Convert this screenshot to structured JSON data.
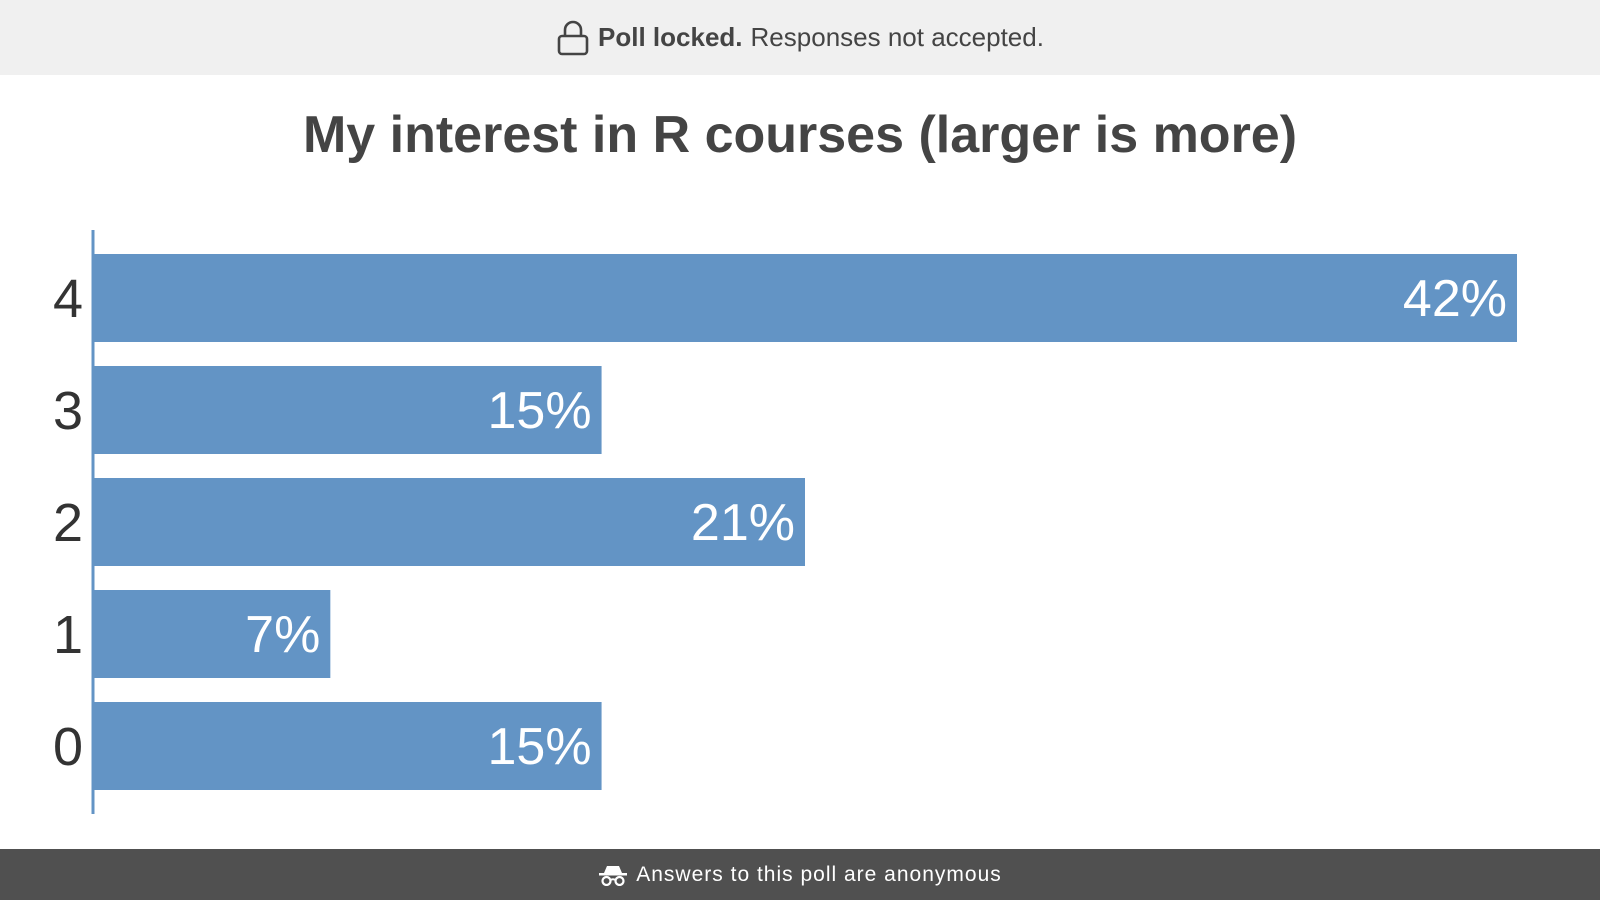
{
  "banner": {
    "icon": "lock-icon",
    "strong_text": "Poll locked.",
    "text": "Responses not accepted."
  },
  "footer": {
    "icon": "incognito-icon",
    "text": "Answers to this poll are anonymous"
  },
  "colors": {
    "bar": "#6394c5",
    "axis": "#6394c5",
    "banner_bg": "#f0f0f0",
    "footer_bg": "#505050",
    "text": "#444444"
  },
  "chart_data": {
    "type": "bar",
    "orientation": "horizontal",
    "title": "My interest in R courses (larger is more)",
    "categories": [
      "4",
      "3",
      "2",
      "1",
      "0"
    ],
    "values": [
      42,
      15,
      21,
      7,
      15
    ],
    "value_labels": [
      "42%",
      "15%",
      "21%",
      "7%",
      "15%"
    ],
    "unit": "%",
    "xlim": [
      0,
      42
    ],
    "grid": false,
    "legend": "none"
  }
}
